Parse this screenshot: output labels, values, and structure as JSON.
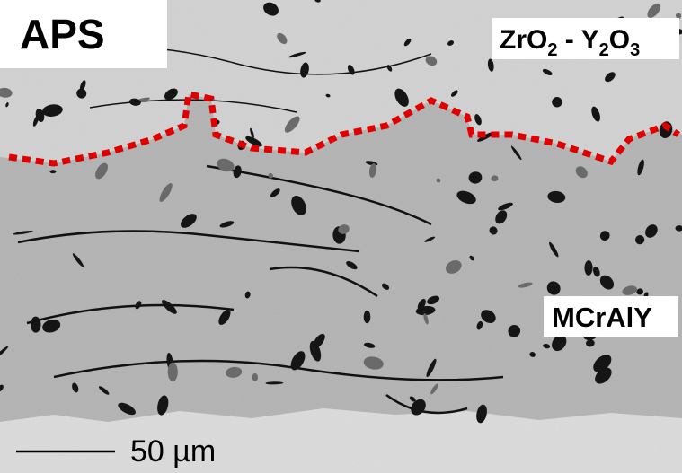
{
  "image_labels": {
    "process": "APS",
    "top_coat": [
      {
        "text": "ZrO"
      },
      {
        "text": "2",
        "sub": true
      },
      {
        "text": " - Y"
      },
      {
        "text": "2",
        "sub": true
      },
      {
        "text": "O"
      },
      {
        "text": "3",
        "sub": true
      }
    ],
    "bond_coat": "MCrAlY",
    "scale_bar": "50 µm"
  }
}
